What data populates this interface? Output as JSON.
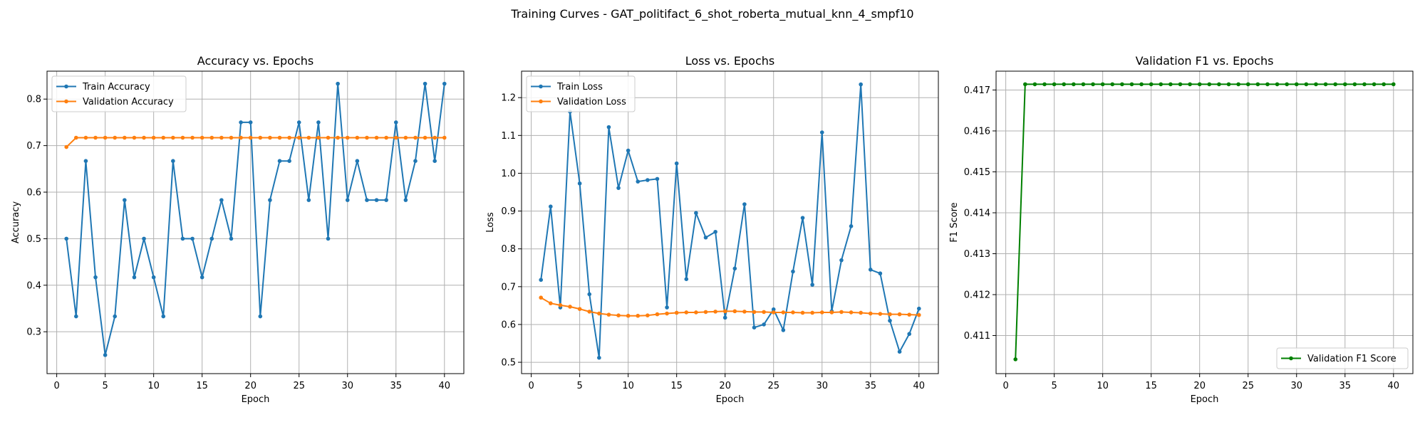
{
  "figure": {
    "suptitle": "Training Curves - GAT_politifact_6_shot_roberta_mutual_knn_4_smpf10"
  },
  "chart_data": [
    {
      "type": "line",
      "title": "Accuracy vs. Epochs",
      "xlabel": "Epoch",
      "ylabel": "Accuracy",
      "xlim": [
        -1,
        42
      ],
      "ylim": [
        0.21,
        0.86
      ],
      "xticks": [
        0,
        5,
        10,
        15,
        20,
        25,
        30,
        35,
        40
      ],
      "yticks": [
        0.3,
        0.4,
        0.5,
        0.6,
        0.7,
        0.8
      ],
      "tick_decimals": 1,
      "grid": true,
      "legend_position": "upper-left",
      "x": [
        1,
        2,
        3,
        4,
        5,
        6,
        7,
        8,
        9,
        10,
        11,
        12,
        13,
        14,
        15,
        16,
        17,
        18,
        19,
        20,
        21,
        22,
        23,
        24,
        25,
        26,
        27,
        28,
        29,
        30,
        31,
        32,
        33,
        34,
        35,
        36,
        37,
        38,
        39,
        40
      ],
      "series": [
        {
          "name": "Train Accuracy",
          "color": "#1f77b4",
          "values": [
            0.5,
            0.333,
            0.667,
            0.417,
            0.25,
            0.333,
            0.583,
            0.417,
            0.5,
            0.417,
            0.333,
            0.667,
            0.5,
            0.5,
            0.417,
            0.5,
            0.583,
            0.5,
            0.75,
            0.75,
            0.333,
            0.583,
            0.667,
            0.667,
            0.75,
            0.583,
            0.75,
            0.5,
            0.833,
            0.583,
            0.667,
            0.583,
            0.583,
            0.583,
            0.75,
            0.583,
            0.667,
            0.833,
            0.667,
            0.833
          ]
        },
        {
          "name": "Validation Accuracy",
          "color": "#ff7f0e",
          "values": [
            0.697,
            0.717,
            0.717,
            0.717,
            0.717,
            0.717,
            0.717,
            0.717,
            0.717,
            0.717,
            0.717,
            0.717,
            0.717,
            0.717,
            0.717,
            0.717,
            0.717,
            0.717,
            0.717,
            0.717,
            0.717,
            0.717,
            0.717,
            0.717,
            0.717,
            0.717,
            0.717,
            0.717,
            0.717,
            0.717,
            0.717,
            0.717,
            0.717,
            0.717,
            0.717,
            0.717,
            0.717,
            0.717,
            0.717,
            0.717
          ]
        }
      ]
    },
    {
      "type": "line",
      "title": "Loss vs. Epochs",
      "xlabel": "Epoch",
      "ylabel": "Loss",
      "xlim": [
        -1,
        42
      ],
      "ylim": [
        0.47,
        1.27
      ],
      "xticks": [
        0,
        5,
        10,
        15,
        20,
        25,
        30,
        35,
        40
      ],
      "yticks": [
        0.5,
        0.6,
        0.7,
        0.8,
        0.9,
        1.0,
        1.1,
        1.2
      ],
      "tick_decimals": 1,
      "grid": true,
      "legend_position": "upper-left",
      "x": [
        1,
        2,
        3,
        4,
        5,
        6,
        7,
        8,
        9,
        10,
        11,
        12,
        13,
        14,
        15,
        16,
        17,
        18,
        19,
        20,
        21,
        22,
        23,
        24,
        25,
        26,
        27,
        28,
        29,
        30,
        31,
        32,
        33,
        34,
        35,
        36,
        37,
        38,
        39,
        40
      ],
      "series": [
        {
          "name": "Train Loss",
          "color": "#1f77b4",
          "values": [
            0.718,
            0.912,
            0.645,
            1.163,
            0.973,
            0.68,
            0.512,
            1.122,
            0.961,
            1.06,
            0.978,
            0.982,
            0.985,
            0.645,
            1.026,
            0.72,
            0.895,
            0.83,
            0.845,
            0.618,
            0.748,
            0.918,
            0.592,
            0.6,
            0.64,
            0.585,
            0.74,
            0.882,
            0.705,
            1.108,
            0.635,
            0.77,
            0.86,
            1.235,
            0.745,
            0.735,
            0.61,
            0.528,
            0.575,
            0.642
          ]
        },
        {
          "name": "Validation Loss",
          "color": "#ff7f0e",
          "values": [
            0.671,
            0.656,
            0.651,
            0.647,
            0.641,
            0.634,
            0.629,
            0.626,
            0.624,
            0.623,
            0.623,
            0.624,
            0.627,
            0.629,
            0.631,
            0.632,
            0.632,
            0.633,
            0.634,
            0.635,
            0.635,
            0.634,
            0.633,
            0.633,
            0.632,
            0.632,
            0.632,
            0.631,
            0.631,
            0.632,
            0.632,
            0.633,
            0.632,
            0.631,
            0.629,
            0.628,
            0.627,
            0.627,
            0.626,
            0.625
          ]
        }
      ]
    },
    {
      "type": "line",
      "title": "Validation F1 vs. Epochs",
      "xlabel": "Epoch",
      "ylabel": "F1 Score",
      "xlim": [
        -1,
        42
      ],
      "ylim": [
        0.41007,
        0.41746
      ],
      "xticks": [
        0,
        5,
        10,
        15,
        20,
        25,
        30,
        35,
        40
      ],
      "yticks": [
        0.411,
        0.412,
        0.413,
        0.414,
        0.415,
        0.416,
        0.417
      ],
      "tick_decimals": 3,
      "grid": true,
      "legend_position": "lower-right",
      "x": [
        1,
        2,
        3,
        4,
        5,
        6,
        7,
        8,
        9,
        10,
        11,
        12,
        13,
        14,
        15,
        16,
        17,
        18,
        19,
        20,
        21,
        22,
        23,
        24,
        25,
        26,
        27,
        28,
        29,
        30,
        31,
        32,
        33,
        34,
        35,
        36,
        37,
        38,
        39,
        40
      ],
      "series": [
        {
          "name": "Validation F1 Score",
          "color": "#008000",
          "values": [
            0.41042,
            0.41714,
            0.41714,
            0.41714,
            0.41714,
            0.41714,
            0.41714,
            0.41714,
            0.41714,
            0.41714,
            0.41714,
            0.41714,
            0.41714,
            0.41714,
            0.41714,
            0.41714,
            0.41714,
            0.41714,
            0.41714,
            0.41714,
            0.41714,
            0.41714,
            0.41714,
            0.41714,
            0.41714,
            0.41714,
            0.41714,
            0.41714,
            0.41714,
            0.41714,
            0.41714,
            0.41714,
            0.41714,
            0.41714,
            0.41714,
            0.41714,
            0.41714,
            0.41714,
            0.41714,
            0.41714
          ]
        }
      ]
    }
  ]
}
